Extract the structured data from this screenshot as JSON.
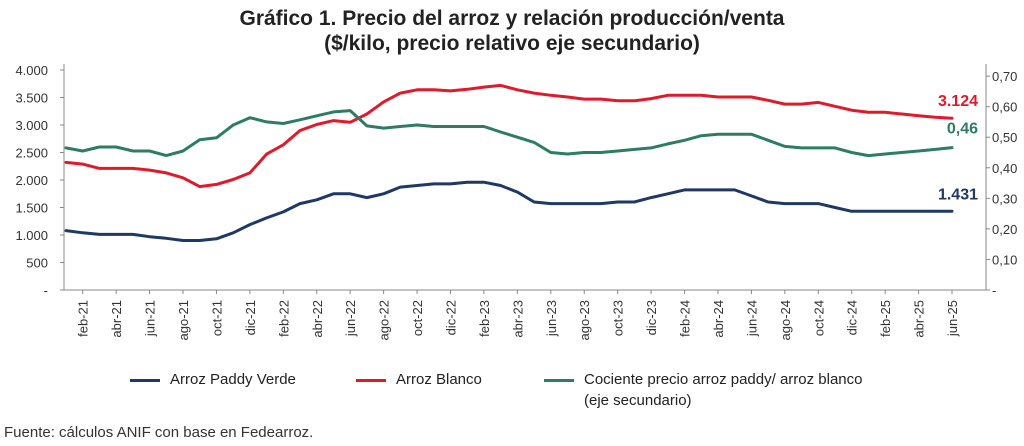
{
  "title_line1": "Gráfico 1. Precio del arroz y relación producción/venta",
  "title_line2": "($/kilo, precio relativo eje secundario)",
  "source": "Fuente: cálculos ANIF con base en Fedearroz.",
  "legend": {
    "paddy": "Arroz Paddy Verde",
    "blanco": "Arroz Blanco",
    "ratio_line1": "Cociente precio arroz paddy/ arroz blanco",
    "ratio_line2": "(eje secundario)"
  },
  "chart_data": {
    "type": "line",
    "x": [
      "ene-21",
      "feb-21",
      "mar-21",
      "abr-21",
      "may-21",
      "jun-21",
      "jul-21",
      "ago-21",
      "sep-21",
      "oct-21",
      "nov-21",
      "dic-21",
      "ene-22",
      "feb-22",
      "mar-22",
      "abr-22",
      "may-22",
      "jun-22",
      "jul-22",
      "ago-22",
      "sep-22",
      "oct-22",
      "nov-22",
      "dic-22",
      "ene-23",
      "feb-23",
      "mar-23",
      "abr-23",
      "may-23",
      "jun-23",
      "jul-23",
      "ago-23",
      "sep-23",
      "oct-23",
      "nov-23",
      "dic-23",
      "ene-24",
      "feb-24",
      "mar-24",
      "abr-24",
      "may-24",
      "jun-24",
      "jul-24",
      "ago-24",
      "sep-24",
      "oct-24",
      "nov-24",
      "dic-24",
      "ene-25",
      "feb-25",
      "mar-25",
      "abr-25",
      "may-25",
      "jun-25"
    ],
    "x_tick_labels": [
      "feb-21",
      "abr-21",
      "jun-21",
      "ago-21",
      "oct-21",
      "dic-21",
      "feb-22",
      "abr-22",
      "jun-22",
      "ago-22",
      "oct-22",
      "dic-22",
      "feb-23",
      "abr-23",
      "jun-23",
      "ago-23",
      "oct-23",
      "dic-23",
      "feb-24",
      "abr-24",
      "jun-24",
      "ago-24",
      "oct-24",
      "dic-24",
      "feb-25",
      "abr-25",
      "jun-25"
    ],
    "y_left": {
      "ticks": [
        "-",
        "500",
        "1.000",
        "1.500",
        "2.000",
        "2.500",
        "3.000",
        "3.500",
        "4.000"
      ],
      "range": [
        0,
        4000
      ]
    },
    "y_right": {
      "ticks": [
        "-",
        "0,10",
        "0,20",
        "0,30",
        "0,40",
        "0,50",
        "0,60",
        "0,70"
      ],
      "range": [
        0,
        0.72
      ]
    },
    "series": [
      {
        "name": "Arroz Paddy Verde",
        "axis": "left",
        "color": "#1f3864",
        "end_label": "1.431",
        "values": [
          1080,
          1040,
          1010,
          1010,
          1010,
          970,
          940,
          900,
          900,
          930,
          1040,
          1190,
          1310,
          1420,
          1570,
          1640,
          1750,
          1750,
          1680,
          1750,
          1870,
          1900,
          1930,
          1930,
          1960,
          1960,
          1900,
          1780,
          1600,
          1570,
          1570,
          1570,
          1570,
          1600,
          1600,
          1680,
          1750,
          1820,
          1820,
          1820,
          1820,
          1710,
          1600,
          1570,
          1570,
          1570,
          1500,
          1431,
          1431,
          1431,
          1431,
          1431,
          1431,
          1431
        ]
      },
      {
        "name": "Arroz Blanco",
        "axis": "left",
        "color": "#e01a2b",
        "end_label": "3.124",
        "values": [
          2320,
          2290,
          2210,
          2210,
          2210,
          2180,
          2130,
          2040,
          1880,
          1920,
          2010,
          2130,
          2470,
          2640,
          2900,
          3010,
          3080,
          3050,
          3200,
          3420,
          3580,
          3640,
          3640,
          3620,
          3650,
          3690,
          3720,
          3640,
          3580,
          3540,
          3510,
          3470,
          3470,
          3440,
          3440,
          3480,
          3540,
          3540,
          3540,
          3510,
          3510,
          3510,
          3450,
          3380,
          3380,
          3410,
          3340,
          3270,
          3230,
          3230,
          3200,
          3170,
          3140,
          3124
        ]
      },
      {
        "name": "Cociente precio arroz paddy/ arroz blanco",
        "axis": "right",
        "color": "#2e7d62",
        "end_label": "0,46",
        "values": [
          0.465,
          0.455,
          0.468,
          0.468,
          0.455,
          0.455,
          0.44,
          0.455,
          0.492,
          0.498,
          0.54,
          0.564,
          0.55,
          0.545,
          0.557,
          0.57,
          0.583,
          0.587,
          0.537,
          0.53,
          0.535,
          0.54,
          0.535,
          0.535,
          0.535,
          0.535,
          0.517,
          0.5,
          0.483,
          0.45,
          0.445,
          0.45,
          0.45,
          0.455,
          0.46,
          0.465,
          0.478,
          0.49,
          0.505,
          0.51,
          0.51,
          0.51,
          0.49,
          0.47,
          0.465,
          0.465,
          0.465,
          0.45,
          0.44,
          0.445,
          0.45,
          0.455,
          0.46,
          0.466
        ]
      }
    ],
    "grid": false,
    "legend_position": "bottom"
  }
}
